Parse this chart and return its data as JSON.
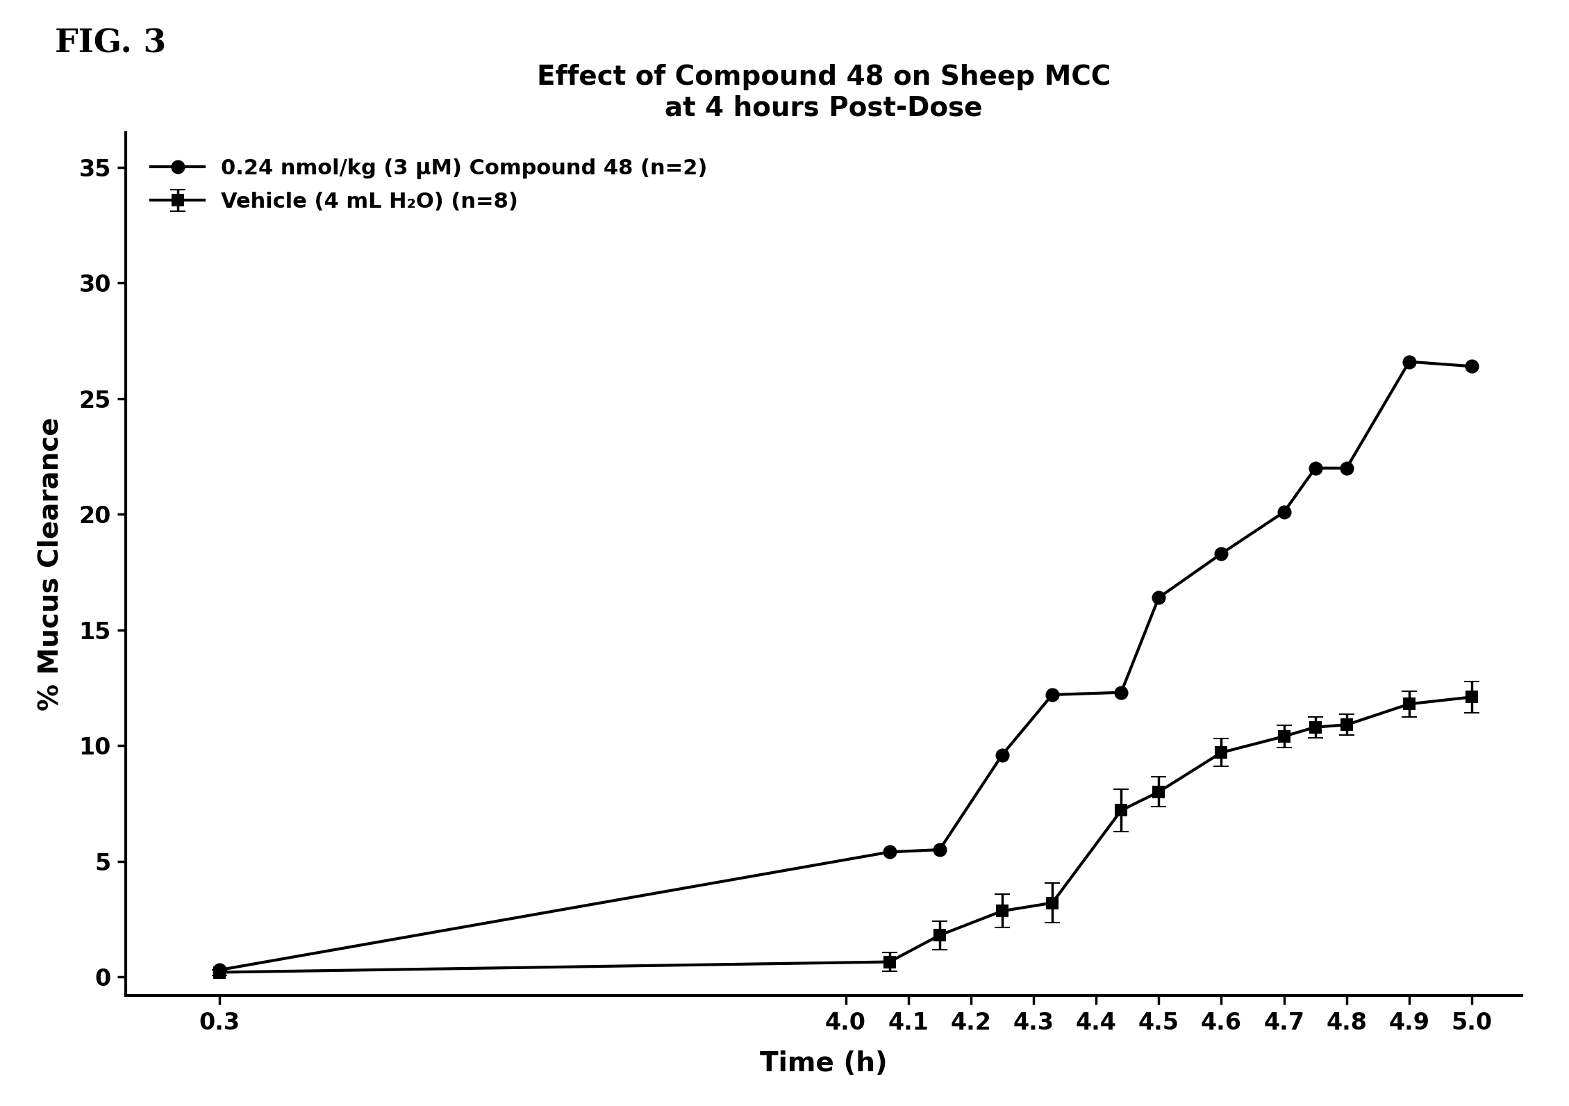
{
  "title_line1": "Effect of Compound 48 on Sheep MCC",
  "title_line2": "at 4 hours Post-Dose",
  "xlabel": "Time (h)",
  "ylabel": "% Mucus Clearance",
  "fig_label": "FIG. 3",
  "xlim": [
    2.85,
    5.08
  ],
  "ylim": [
    -0.8,
    36.5
  ],
  "xticks": [
    3.0,
    4.0,
    4.1,
    4.2,
    4.3,
    4.4,
    4.5,
    4.6,
    4.7,
    4.8,
    4.9,
    5.0
  ],
  "xtick_labels": [
    "0.3",
    "4.0",
    "4.1",
    "4.2",
    "4.3",
    "4.4",
    "4.5",
    "4.6",
    "4.7",
    "4.8",
    "4.9",
    "5.0"
  ],
  "yticks": [
    0,
    5,
    10,
    15,
    20,
    25,
    30,
    35
  ],
  "compound48_x": [
    3.0,
    4.07,
    4.15,
    4.25,
    4.33,
    4.44,
    4.5,
    4.6,
    4.7,
    4.75,
    4.8,
    4.9,
    5.0
  ],
  "compound48_y": [
    0.3,
    5.4,
    5.5,
    9.6,
    12.2,
    12.3,
    16.4,
    18.3,
    20.1,
    22.0,
    22.0,
    26.6,
    26.4
  ],
  "vehicle_x": [
    3.0,
    4.07,
    4.15,
    4.25,
    4.33,
    4.44,
    4.5,
    4.6,
    4.7,
    4.75,
    4.8,
    4.9,
    5.0
  ],
  "vehicle_y": [
    0.2,
    0.65,
    1.8,
    2.85,
    3.2,
    7.2,
    8.0,
    9.7,
    10.4,
    10.8,
    10.9,
    11.8,
    12.1
  ],
  "vehicle_yerr": [
    0.12,
    0.4,
    0.62,
    0.72,
    0.85,
    0.92,
    0.65,
    0.6,
    0.48,
    0.45,
    0.45,
    0.55,
    0.68
  ],
  "legend_compound48": "0.24 nmol/kg (3 μM) Compound 48 (n=2)",
  "legend_vehicle": "Vehicle (4 mL H₂O) (n=8)",
  "line_color": "#000000",
  "background_color": "#ffffff",
  "title_fontsize": 28,
  "label_fontsize": 28,
  "tick_fontsize": 24,
  "legend_fontsize": 22,
  "fig_label_fontsize": 34,
  "figwidth": 22.59,
  "figheight": 15.92,
  "dpi": 100
}
